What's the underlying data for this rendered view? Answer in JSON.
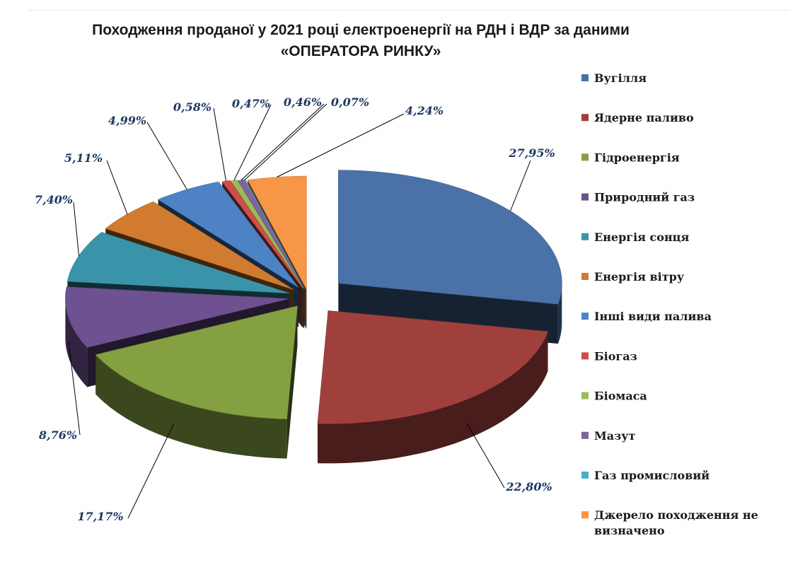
{
  "chart_data": {
    "type": "pie",
    "title_line1": "Походження проданої у 2021 році електроенергії на РДН і ВДР за даними",
    "title_line2": "«ОПЕРАТОРА РИНКУ»",
    "slices": [
      {
        "name": "Вугілля",
        "value": 27.95,
        "label": "27,95%",
        "color": "#4a72a8"
      },
      {
        "name": "Ядерне паливо",
        "value": 22.8,
        "label": "22,80%",
        "color": "#a0403d"
      },
      {
        "name": "Гідроенергія",
        "value": 17.17,
        "label": "17,17%",
        "color": "#84a041"
      },
      {
        "name": "Природний газ",
        "value": 8.76,
        "label": "8,76%",
        "color": "#6d5190"
      },
      {
        "name": "Енергія сонця",
        "value": 7.4,
        "label": "7,40%",
        "color": "#3a94a9"
      },
      {
        "name": "Енергія вітру",
        "value": 5.11,
        "label": "5,11%",
        "color": "#d07b30"
      },
      {
        "name": "Інші види палива",
        "value": 4.99,
        "label": "4,99%",
        "color": "#4d82c4"
      },
      {
        "name": "Біогаз",
        "value": 0.58,
        "label": "0,58%",
        "color": "#cf4e4b"
      },
      {
        "name": "Біомаса",
        "value": 0.47,
        "label": "0,47%",
        "color": "#9bbb59"
      },
      {
        "name": "Мазут",
        "value": 0.46,
        "label": "0,46%",
        "color": "#8064a2"
      },
      {
        "name": "Газ промисловий",
        "value": 0.07,
        "label": "0,07%",
        "color": "#4bacc6"
      },
      {
        "name": "Джерело походження не визначено",
        "value": 4.24,
        "label": "4,24%",
        "color": "#f79646"
      }
    ],
    "legend_position": "right"
  }
}
